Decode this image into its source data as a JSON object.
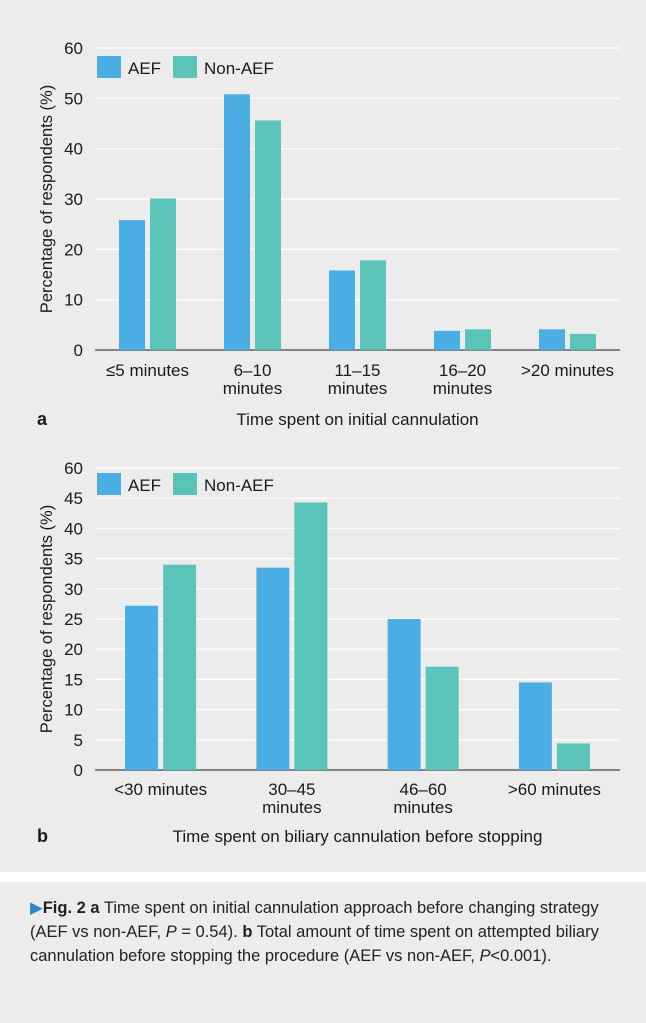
{
  "colors": {
    "aef": "#4aaee5",
    "non_aef": "#5bc4b8",
    "grid": "#ffffff",
    "marker": "#2a86c8"
  },
  "chart_data": [
    {
      "panel_label": "a",
      "type": "bar",
      "categories": [
        [
          "≤5 minutes"
        ],
        [
          "6–10",
          "minutes"
        ],
        [
          "11–15",
          "minutes"
        ],
        [
          "16–20",
          "minutes"
        ],
        [
          ">20 minutes"
        ]
      ],
      "series": [
        {
          "name": "AEF",
          "values": [
            25.8,
            50.8,
            15.8,
            3.8,
            4.1
          ]
        },
        {
          "name": "Non-AEF",
          "values": [
            30.1,
            45.6,
            17.8,
            4.1,
            3.2
          ]
        }
      ],
      "xlabel": "Time spent on initial cannulation",
      "ylabel": "Percentage of respondents (%)",
      "ylim": [
        0,
        60
      ],
      "yticks": [
        0,
        10,
        20,
        30,
        40,
        50,
        60
      ],
      "grid": true,
      "legend": "top-left"
    },
    {
      "panel_label": "b",
      "type": "bar",
      "categories": [
        [
          "<30 minutes"
        ],
        [
          "30–45",
          "minutes"
        ],
        [
          "46–60",
          "minutes"
        ],
        [
          ">60 minutes"
        ]
      ],
      "series": [
        {
          "name": "AEF",
          "values": [
            27.2,
            33.5,
            25.0,
            14.5
          ]
        },
        {
          "name": "Non-AEF",
          "values": [
            34.0,
            44.3,
            17.1,
            4.4
          ]
        }
      ],
      "xlabel": "Time spent on biliary cannulation before stopping",
      "ylabel": "Percentage of respondents (%)",
      "ylim": [
        0,
        60
      ],
      "yticks": [
        0,
        5,
        10,
        15,
        20,
        25,
        30,
        35,
        40,
        45,
        60
      ],
      "grid": true,
      "legend": "top-left"
    }
  ],
  "caption": {
    "marker": "▶",
    "fig_label": "Fig. 2",
    "a_label": "a",
    "a_text": "Time spent on initial cannulation approach before changing strategy (AEF vs non-AEF,",
    "a_stat_var": "P",
    "a_stat_val": " = 0.54).",
    "b_label": "b",
    "b_text": "Total amount of time spent on attempted biliary cannulation before stopping the procedure (AEF vs non-AEF,",
    "b_stat_var": "P",
    "b_stat_val": "<0.001)."
  }
}
